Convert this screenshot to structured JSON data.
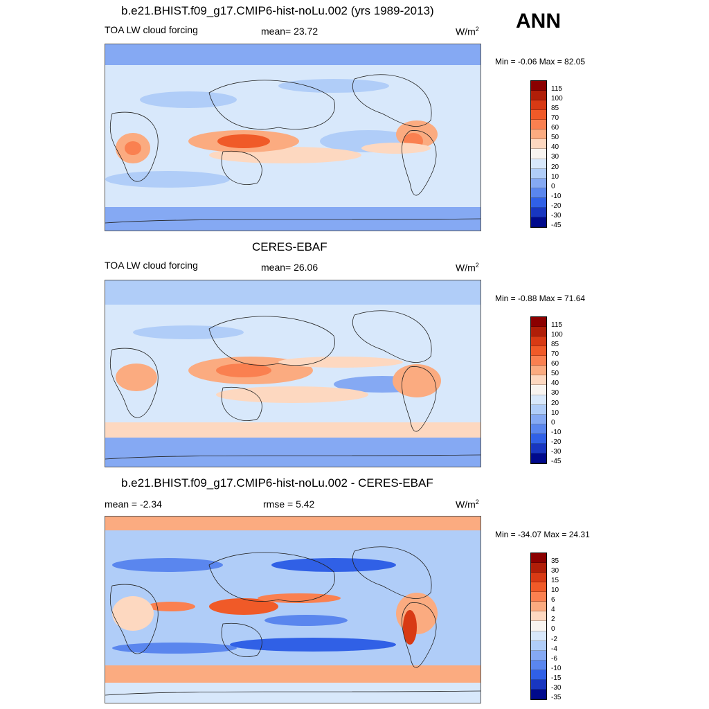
{
  "season": "ANN",
  "panels": [
    {
      "title": "b.e21.BHIST.f09_g17.CMIP6-hist-noLu.002 (yrs 1989-2013)",
      "left_label": "TOA LW cloud forcing",
      "center_label": "mean=  23.72",
      "units": "W/m",
      "units_sup": "2",
      "minmax": "Min =  -0.06 Max =  82.05",
      "levels": [
        "115",
        "100",
        "85",
        "70",
        "60",
        "50",
        "40",
        "30",
        "20",
        "10",
        "0",
        "-10",
        "-20",
        "-30",
        "-45"
      ]
    },
    {
      "title": "CERES-EBAF",
      "left_label": "TOA LW cloud forcing",
      "center_label": "mean=  26.06",
      "units": "W/m",
      "units_sup": "2",
      "minmax": "Min =  -0.88 Max =  71.64",
      "levels": [
        "115",
        "100",
        "85",
        "70",
        "60",
        "50",
        "40",
        "30",
        "20",
        "10",
        "0",
        "-10",
        "-20",
        "-30",
        "-45"
      ]
    },
    {
      "title": "b.e21.BHIST.f09_g17.CMIP6-hist-noLu.002 - CERES-EBAF",
      "left_label": "mean =  -2.34",
      "center_label": "rmse =   5.42",
      "units": "W/m",
      "units_sup": "2",
      "minmax": "Min = -34.07 Max =  24.31",
      "levels": [
        "35",
        "30",
        "15",
        "10",
        "6",
        "4",
        "2",
        "0",
        "-2",
        "-4",
        "-6",
        "-10",
        "-15",
        "-30",
        "-35"
      ]
    }
  ],
  "colorbar_colors": [
    "#8b0000",
    "#b01e08",
    "#d83a14",
    "#f05a28",
    "#fa8050",
    "#fbab80",
    "#fdd8c0",
    "#f8f4f0",
    "#d8e8fb",
    "#b0cdf8",
    "#85a9f3",
    "#5a86ee",
    "#3060e6",
    "#1836c0",
    "#000a8c"
  ]
}
